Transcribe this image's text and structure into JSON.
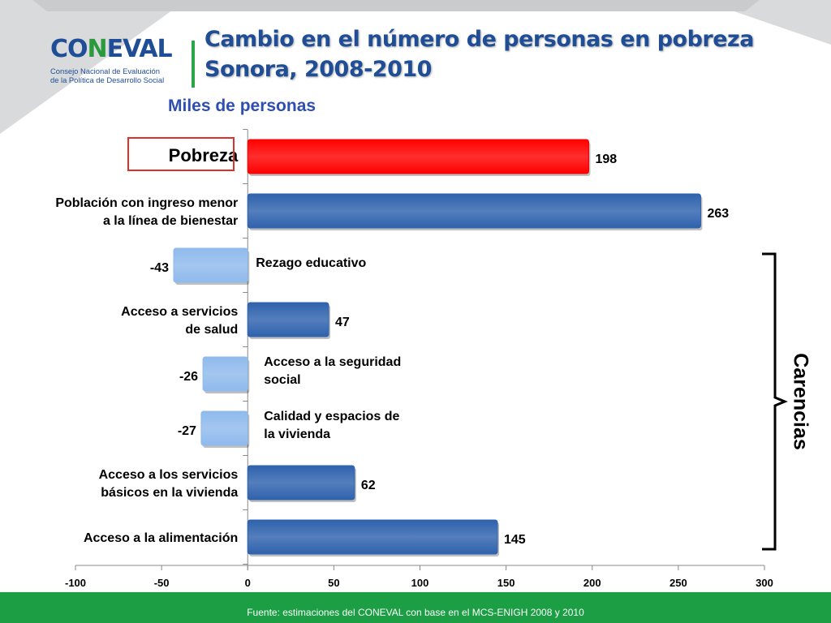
{
  "header": {
    "title_line1": "Cambio en el número de personas en pobreza",
    "title_line2": "Sonora, 2008-2010",
    "subtitle": "Miles de personas"
  },
  "logo": {
    "word_start": "CO",
    "word_mid": "N",
    "word_end": "EVAL",
    "sub_line1": "Consejo Nacional de Evaluación",
    "sub_line2": "de la Política de Desarrollo Social"
  },
  "footer": {
    "source": "Fuente: estimaciones del CONEVAL con base en el MCS-ENIGH 2008 y 2010"
  },
  "chart_data": {
    "type": "bar",
    "orientation": "horizontal",
    "categories": [
      [
        "Pobreza"
      ],
      [
        "Población con ingreso menor",
        "a la línea de bienestar"
      ],
      [
        "Rezago educativo"
      ],
      [
        "Acceso a servicios",
        "de salud"
      ],
      [
        "Acceso a  la seguridad",
        "social"
      ],
      [
        "Calidad y espacios de",
        "la vivienda"
      ],
      [
        "Acceso a los servicios",
        "básicos en la vivienda"
      ],
      [
        "Acceso a la alimentación"
      ]
    ],
    "values": [
      198,
      263,
      -43,
      47,
      -26,
      -27,
      62,
      145
    ],
    "value_labels": [
      "198",
      "263",
      "-43",
      "47",
      "-26",
      "-27",
      "62",
      "145"
    ],
    "bar_colors": [
      "#ff0000",
      "#2f62ad",
      "#8fbaec",
      "#2f62ad",
      "#8fbaec",
      "#8fbaec",
      "#2f62ad",
      "#2f62ad"
    ],
    "highlighted_category": "Pobreza",
    "xlim": [
      -100,
      300
    ],
    "xticks": [
      -100,
      -50,
      0,
      50,
      100,
      150,
      200,
      250,
      300
    ],
    "xtick_labels": [
      "-100",
      "-50",
      "0",
      "50",
      "100",
      "150",
      "200",
      "250",
      "300"
    ],
    "bracket_label": "Carencias",
    "bracket_span": [
      "Rezago educativo",
      "Acceso a la alimentación"
    ],
    "grid": false,
    "legend": "none"
  }
}
